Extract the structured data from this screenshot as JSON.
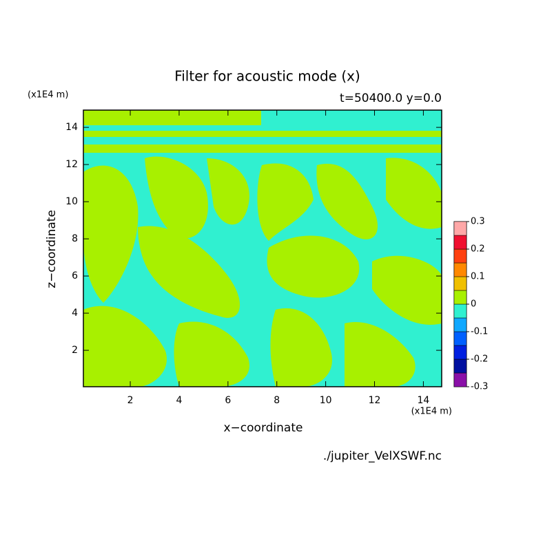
{
  "chart_data": {
    "type": "contour",
    "title": "Filter for acoustic mode (x)",
    "subtitle": "t=50400.0 y=0.0",
    "x_label": "x−coordinate",
    "y_label": "z−coordinate",
    "x_unit": "(x1E4 m)",
    "y_unit": "(x1E4 m)",
    "source": "./jupiter_VelXSWF.nc",
    "xlim": [
      0.08,
      14.75
    ],
    "ylim": [
      0.04,
      14.93
    ],
    "xticks": [
      2,
      4,
      6,
      8,
      10,
      12,
      14
    ],
    "yticks": [
      2,
      4,
      6,
      8,
      10,
      12,
      14
    ],
    "colorbar": {
      "levels": [
        -0.3,
        -0.25,
        -0.2,
        -0.15,
        -0.1,
        -0.05,
        0,
        0.05,
        0.1,
        0.15,
        0.2,
        0.25,
        0.3
      ],
      "colors": [
        "#8a10a8",
        "#0010a0",
        "#0020e0",
        "#0060ff",
        "#10a8ff",
        "#30f0d0",
        "#a8f000",
        "#f0c000",
        "#ff8800",
        "#ff4010",
        "#f01030",
        "#ffa8a8"
      ],
      "ticks": [
        -0.3,
        -0.2,
        -0.1,
        0,
        0.1,
        0.2,
        0.3
      ]
    }
  }
}
